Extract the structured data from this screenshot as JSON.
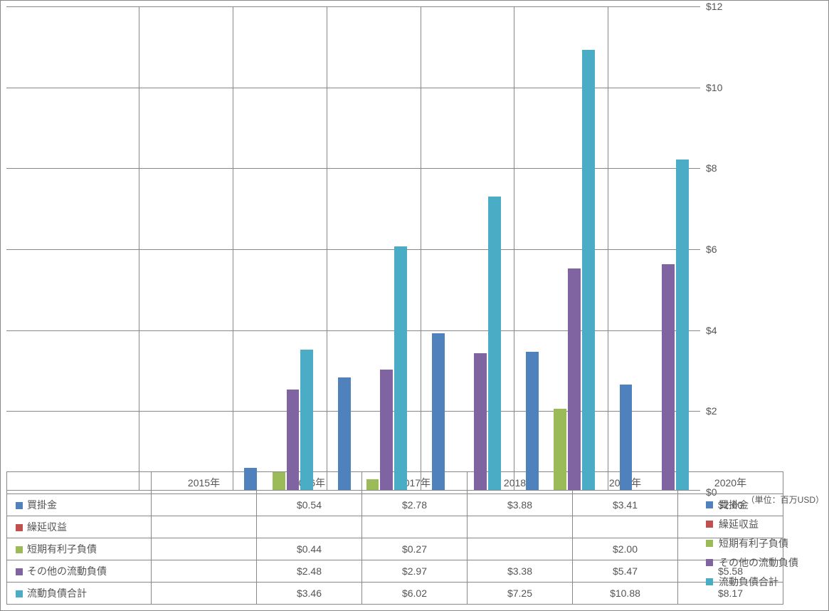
{
  "chart": {
    "type": "bar-grouped",
    "background_color": "#ffffff",
    "grid_color": "#888888",
    "text_color": "#555555",
    "font_size": 14,
    "unit_label": "（単位：百万USD）",
    "ylim": [
      0,
      12
    ],
    "ytick_step": 2,
    "ytick_prefix": "$",
    "categories": [
      "2015年",
      "2016年",
      "2017年",
      "2018年",
      "2019年",
      "2020年"
    ],
    "series": {
      "s1": {
        "label": "買掛金",
        "color": "#4f81bd"
      },
      "s2": {
        "label": "繰延収益",
        "color": "#c0504d"
      },
      "s3": {
        "label": "短期有利子負債",
        "color": "#9bbb59"
      },
      "s4": {
        "label": "その他の流動負債",
        "color": "#8064a2"
      },
      "s5": {
        "label": "流動負債合計",
        "color": "#4bacc6"
      }
    },
    "data": {
      "s1": [
        null,
        0.54,
        2.78,
        3.88,
        3.41,
        2.6
      ],
      "s2": [
        null,
        null,
        null,
        null,
        null,
        null
      ],
      "s3": [
        null,
        0.44,
        0.27,
        null,
        2.0,
        null
      ],
      "s4": [
        null,
        2.48,
        2.97,
        3.38,
        5.47,
        5.58
      ],
      "s5": [
        null,
        3.46,
        6.02,
        7.25,
        10.88,
        8.17
      ]
    },
    "bar_width_ratio": 0.15,
    "group_gap_ratio": 0.1,
    "formatted": {
      "s1": [
        "",
        "$0.54",
        "$2.78",
        "$3.88",
        "$3.41",
        "$2.60"
      ],
      "s2": [
        "",
        "",
        "",
        "",
        "",
        ""
      ],
      "s3": [
        "",
        "$0.44",
        "$0.27",
        "",
        "$2.00",
        ""
      ],
      "s4": [
        "",
        "$2.48",
        "$2.97",
        "$3.38",
        "$5.47",
        "$5.58"
      ],
      "s5": [
        "",
        "$3.46",
        "$6.02",
        "$7.25",
        "$10.88",
        "$8.17"
      ]
    }
  }
}
